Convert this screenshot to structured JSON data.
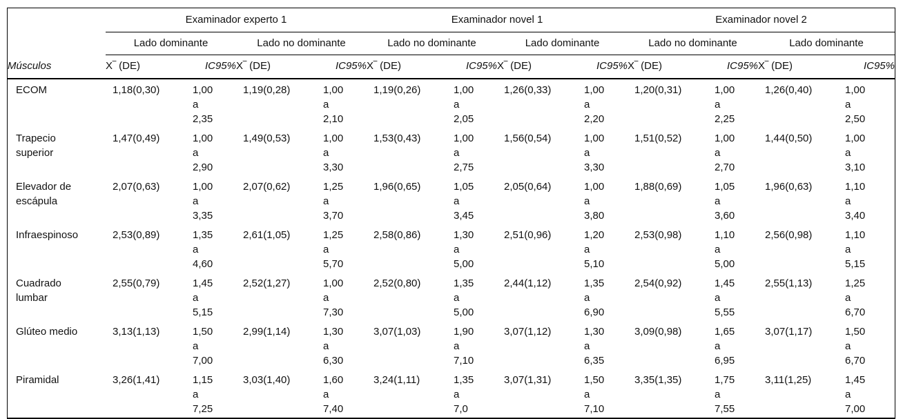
{
  "page": {
    "background": "#ffffff",
    "text_color": "#111111",
    "rule_color": "#000000"
  },
  "table": {
    "corner_header": "Músculos",
    "examiner_groups": [
      {
        "label": "Examinador experto 1",
        "sides": [
          "Lado dominante",
          "Lado no dominante"
        ]
      },
      {
        "label": "Examinador novel 1",
        "sides": [
          "Lado no dominante",
          "Lado dominante"
        ]
      },
      {
        "label": "Examinador novel 2",
        "sides": [
          "Lado no dominante",
          "Lado dominante"
        ]
      }
    ],
    "measure_headers": [
      "X‾ (DE)",
      "IC95%"
    ],
    "rows": [
      {
        "muscle": "ECOM",
        "values": [
          {
            "mean": "1,18(0,30)",
            "ic": "1,00\na\n2,35"
          },
          {
            "mean": "1,19(0,28)",
            "ic": "1,00\na\n2,10"
          },
          {
            "mean": "1,19(0,26)",
            "ic": "1,00\na\n2,05"
          },
          {
            "mean": "1,26(0,33)",
            "ic": "1,00\na\n2,20"
          },
          {
            "mean": "1,20(0,31)",
            "ic": "1,00\na\n2,25"
          },
          {
            "mean": "1,26(0,40)",
            "ic": "1,00\na\n2,50"
          }
        ]
      },
      {
        "muscle": "Trapecio superior",
        "values": [
          {
            "mean": "1,47(0,49)",
            "ic": "1,00\na\n2,90"
          },
          {
            "mean": "1,49(0,53)",
            "ic": "1,00\na\n3,30"
          },
          {
            "mean": "1,53(0,43)",
            "ic": "1,00\na\n2,75"
          },
          {
            "mean": "1,56(0,54)",
            "ic": "1,00\na\n3,30"
          },
          {
            "mean": "1,51(0,52)",
            "ic": "1,00\na\n2,70"
          },
          {
            "mean": "1,44(0,50)",
            "ic": "1,00\na\n3,10"
          }
        ]
      },
      {
        "muscle": "Elevador de escápula",
        "values": [
          {
            "mean": "2,07(0,63)",
            "ic": "1,00\na\n3,35"
          },
          {
            "mean": "2,07(0,62)",
            "ic": "1,25\na\n3,70"
          },
          {
            "mean": "1,96(0,65)",
            "ic": "1,05\na\n3,45"
          },
          {
            "mean": "2,05(0,64)",
            "ic": "1,00\na\n3,80"
          },
          {
            "mean": "1,88(0,69)",
            "ic": "1,05\na\n3,60"
          },
          {
            "mean": "1,96(0,63)",
            "ic": "1,10\na\n3,40"
          }
        ]
      },
      {
        "muscle": "Infraespinoso",
        "values": [
          {
            "mean": "2,53(0,89)",
            "ic": "1,35\na\n4,60"
          },
          {
            "mean": "2,61(1,05)",
            "ic": "1,25\na\n5,70"
          },
          {
            "mean": "2,58(0,86)",
            "ic": "1,30\na\n5,00"
          },
          {
            "mean": "2,51(0,96)",
            "ic": "1,20\na\n5,10"
          },
          {
            "mean": "2,53(0,98)",
            "ic": "1,10\na\n5,00"
          },
          {
            "mean": "2,56(0,98)",
            "ic": "1,10\na\n5,15"
          }
        ]
      },
      {
        "muscle": "Cuadrado lumbar",
        "values": [
          {
            "mean": "2,55(0,79)",
            "ic": "1,45\na\n5,15"
          },
          {
            "mean": "2,52(1,27)",
            "ic": "1,00\na\n7,30"
          },
          {
            "mean": "2,52(0,80)",
            "ic": "1,35\na\n5,00"
          },
          {
            "mean": "2,44(1,12)",
            "ic": "1,35\na\n6,90"
          },
          {
            "mean": "2,54(0,92)",
            "ic": "1,45\na\n5,55"
          },
          {
            "mean": "2,55(1,13)",
            "ic": "1,25\na\n6,70"
          }
        ]
      },
      {
        "muscle": "Glúteo medio",
        "values": [
          {
            "mean": "3,13(1,13)",
            "ic": "1,50\na\n7,00"
          },
          {
            "mean": "2,99(1,14)",
            "ic": "1,30\na\n6,30"
          },
          {
            "mean": "3,07(1,03)",
            "ic": "1,90\na\n7,10"
          },
          {
            "mean": "3,07(1,12)",
            "ic": "1,30\na\n6,35"
          },
          {
            "mean": "3,09(0,98)",
            "ic": "1,65\na\n6,95"
          },
          {
            "mean": "3,07(1,17)",
            "ic": "1,50\na\n6,70"
          }
        ]
      },
      {
        "muscle": "Piramidal",
        "values": [
          {
            "mean": "3,26(1,41)",
            "ic": "1,15\na\n7,25"
          },
          {
            "mean": "3,03(1,40)",
            "ic": "1,60\na\n7,40"
          },
          {
            "mean": "3,24(1,11)",
            "ic": "1,35\na\n7,0"
          },
          {
            "mean": "3,07(1,31)",
            "ic": "1,50\na\n7,10"
          },
          {
            "mean": "3,35(1,35)",
            "ic": "1,75\na\n7,55"
          },
          {
            "mean": "3,11(1,25)",
            "ic": "1,45\na\n7,00"
          }
        ]
      }
    ]
  }
}
